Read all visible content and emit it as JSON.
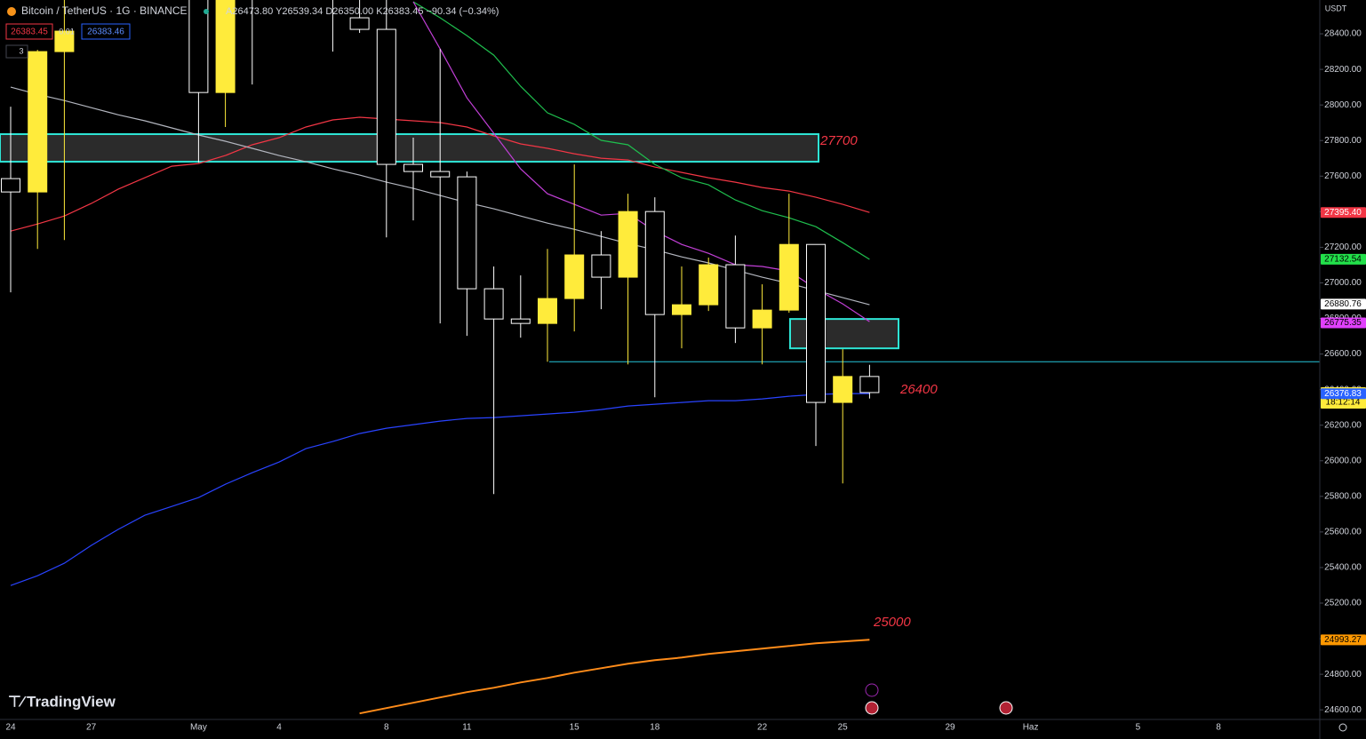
{
  "header": {
    "symbol": "Bitcoin / TetherUS · 1G · BINANCE",
    "ohlc": "A26473.80 Y26539.34 D26350.00 K26383.45 −90.34 (−0.34%)",
    "sell": "26383.45",
    "spread": "0.01",
    "buy": "26383.46",
    "indicators": "3",
    "currency": "USDT",
    "logo": "TradingView"
  },
  "chart_data": {
    "type": "candlestick",
    "categories": [
      "24",
      null,
      null,
      "27",
      null,
      null,
      null,
      "May",
      null,
      null,
      "4",
      null,
      null,
      null,
      "8",
      null,
      null,
      "11",
      null,
      null,
      null,
      "15",
      null,
      null,
      "18",
      null,
      null,
      null,
      "22",
      null,
      null,
      "25",
      null,
      null,
      null,
      "29",
      null,
      null,
      "Haz",
      null,
      null,
      null,
      "5",
      null,
      null,
      "8"
    ],
    "open": [
      27586,
      27511,
      28300,
      null,
      null,
      null,
      null,
      28800,
      28070,
      28900,
      null,
      null,
      28800,
      28490,
      28425,
      27666,
      27626,
      27596,
      26967,
      26797,
      26772,
      26912,
      27157,
      27032,
      27401,
      26822,
      26877,
      27102,
      26747,
      26847,
      27216,
      26328,
      26473.8,
      null,
      null,
      null,
      null,
      null,
      null,
      null,
      null,
      null,
      null,
      null,
      null,
      null
    ],
    "high": [
      27990,
      28310,
      28650,
      null,
      null,
      null,
      null,
      29000,
      29100,
      29200,
      null,
      null,
      29000,
      28600,
      28590,
      27816,
      28315,
      27626,
      27092,
      27042,
      27191,
      27666,
      27291,
      27501,
      27481,
      27092,
      27142,
      27266,
      26992,
      27501,
      27216,
      26627,
      26539.34,
      null,
      null,
      null,
      null,
      null,
      null,
      null,
      null,
      null,
      null,
      null,
      null,
      null
    ],
    "low": [
      26947,
      27191,
      27241,
      null,
      null,
      null,
      null,
      27676,
      27876,
      28115,
      null,
      null,
      28300,
      28405,
      27256,
      27351,
      26772,
      26702,
      25813,
      26692,
      26557,
      26727,
      26852,
      26542,
      26357,
      26632,
      26842,
      26662,
      26542,
      26832,
      26083,
      25873,
      26350,
      null,
      null,
      null,
      null,
      null,
      null,
      null,
      null,
      null,
      null,
      null,
      null,
      null
    ],
    "close": [
      27511,
      28300,
      28415,
      null,
      null,
      null,
      null,
      28070,
      28900,
      28700,
      null,
      null,
      28700,
      28425,
      27666,
      27626,
      27596,
      26967,
      26797,
      26772,
      26912,
      27157,
      27032,
      27401,
      26822,
      26877,
      27102,
      26747,
      26847,
      27216,
      26328,
      26473.8,
      26383.45,
      null,
      null,
      null,
      null,
      null,
      null,
      null,
      null,
      null,
      null,
      null,
      null,
      null
    ],
    "up_color": "#ffeb3b",
    "down_color": "#ffffff",
    "ylim": [
      24546,
      28590
    ],
    "yticks": [
      {
        "value": 24600,
        "label": "24600.00"
      },
      {
        "value": 24800,
        "label": "24800.00"
      },
      {
        "value": 25000,
        "label": "25000.00"
      },
      {
        "value": 25200,
        "label": "25200.00"
      },
      {
        "value": 25400,
        "label": "25400.00"
      },
      {
        "value": 25600,
        "label": "25600.00"
      },
      {
        "value": 25800,
        "label": "25800.00"
      },
      {
        "value": 26000,
        "label": "26000.00"
      },
      {
        "value": 26200,
        "label": "26200.00"
      },
      {
        "value": 26400,
        "label": "26400.00"
      },
      {
        "value": 26600,
        "label": "26600.00"
      },
      {
        "value": 26800,
        "label": "26800.00"
      },
      {
        "value": 27000,
        "label": "27000.00"
      },
      {
        "value": 27200,
        "label": "27200.00"
      },
      {
        "value": 27400,
        "label": "27400.00"
      },
      {
        "value": 27600,
        "label": "27600.00"
      },
      {
        "value": 27800,
        "label": "27800.00"
      },
      {
        "value": 28000,
        "label": "28000.00"
      },
      {
        "value": 28200,
        "label": "28200.00"
      },
      {
        "value": 28400,
        "label": "28400.00"
      }
    ],
    "moving_averages": [
      {
        "color": "#f23645",
        "values": [
          27291,
          27331,
          27376,
          27446,
          27526,
          27591,
          27656,
          27671,
          27716,
          27776,
          27816,
          27876,
          27916,
          27931,
          27921,
          27911,
          27901,
          27876,
          27826,
          27781,
          27756,
          27726,
          27701,
          27691,
          27651,
          27621,
          27591,
          27566,
          27536,
          27516,
          27481,
          27441,
          27396,
          null,
          null,
          null,
          null,
          null,
          null,
          null,
          null,
          null,
          null,
          null,
          null,
          null
        ]
      },
      {
        "color": "#1fbf4e",
        "values": [
          null,
          null,
          null,
          null,
          null,
          null,
          null,
          null,
          null,
          null,
          null,
          null,
          null,
          null,
          null,
          28580,
          28490,
          28390,
          28280,
          28105,
          27956,
          27891,
          27801,
          27776,
          27666,
          27591,
          27551,
          27466,
          27406,
          27366,
          27316,
          27226,
          27132,
          null,
          null,
          null,
          null,
          null,
          null,
          null,
          null,
          null,
          null,
          null,
          null,
          null
        ]
      },
      {
        "color": "#c13fd6",
        "values": [
          null,
          null,
          null,
          null,
          null,
          null,
          null,
          null,
          null,
          null,
          null,
          null,
          null,
          null,
          null,
          28580,
          28315,
          28040,
          27841,
          27641,
          27501,
          27441,
          27381,
          27391,
          27291,
          27216,
          27166,
          27102,
          27092,
          27067,
          26967,
          26882,
          26782,
          null,
          null,
          null,
          null,
          null,
          null,
          null,
          null,
          null,
          null,
          null,
          null,
          null
        ]
      },
      {
        "color": "#b2b5be",
        "values": [
          28100,
          28060,
          28025,
          27985,
          27945,
          27911,
          27871,
          27831,
          27796,
          27756,
          27716,
          27681,
          27641,
          27606,
          27566,
          27531,
          27491,
          27451,
          27416,
          27376,
          27336,
          27301,
          27261,
          27221,
          27186,
          27146,
          27112,
          27072,
          27032,
          26997,
          26957,
          26917,
          26877,
          null,
          null,
          null,
          null,
          null,
          null,
          null,
          null,
          null,
          null,
          null,
          null,
          null
        ]
      },
      {
        "color": "#2943ff",
        "values": [
          25299,
          25354,
          25424,
          25524,
          25614,
          25694,
          25743,
          25793,
          25868,
          25933,
          25993,
          26068,
          26108,
          26153,
          26183,
          26203,
          26223,
          26238,
          26243,
          26253,
          26263,
          26273,
          26288,
          26308,
          26318,
          26328,
          26338,
          26338,
          26348,
          26363,
          26373,
          26378,
          26378,
          null,
          null,
          null,
          null,
          null,
          null,
          null,
          null,
          null,
          null,
          null,
          null,
          null
        ]
      },
      {
        "color": "#ff8c1a",
        "values": [
          null,
          null,
          null,
          null,
          null,
          null,
          null,
          null,
          null,
          null,
          null,
          null,
          null,
          24580,
          24610,
          24640,
          24670,
          24700,
          24724,
          24754,
          24779,
          24809,
          24834,
          24859,
          24879,
          24894,
          24914,
          24929,
          24944,
          24959,
          24974,
          24984,
          24994,
          null,
          null,
          null,
          null,
          null,
          null,
          null,
          null,
          null,
          null,
          null,
          null,
          null
        ]
      }
    ],
    "zones": [
      {
        "ylim": [
          27681,
          27836
        ],
        "color": "#2ee6d6"
      },
      {
        "ylim": [
          26632,
          26797
        ],
        "color": "#2ee6d6"
      }
    ],
    "hline": {
      "value": 26557,
      "color": "#26c6da"
    },
    "annotations": [
      "27700",
      "26400",
      "25000"
    ],
    "price_labels": [
      {
        "value": 27395.4,
        "label": "27395.40",
        "color": "#f23645",
        "text_color": "#ffffff"
      },
      {
        "value": 27132.54,
        "label": "27132.54",
        "color": "#22e04a",
        "text_color": "#000000"
      },
      {
        "value": 26880.76,
        "label": "26880.76",
        "color": "#ffffff",
        "text_color": "#000000"
      },
      {
        "value": 26775.35,
        "label": "26775.35",
        "color": "#e040fb",
        "text_color": "#000000"
      },
      {
        "value": 26383.45,
        "label": "26383.45",
        "color": "#ffeb3b",
        "text_color": "#000000",
        "countdown": "18:12:14"
      },
      {
        "value": 26376.83,
        "label": "26376.83",
        "color": "#2962ff",
        "text_color": "#ffffff"
      },
      {
        "value": 24993.27,
        "label": "24993.27",
        "color": "#ff9800",
        "text_color": "#000000"
      }
    ]
  }
}
